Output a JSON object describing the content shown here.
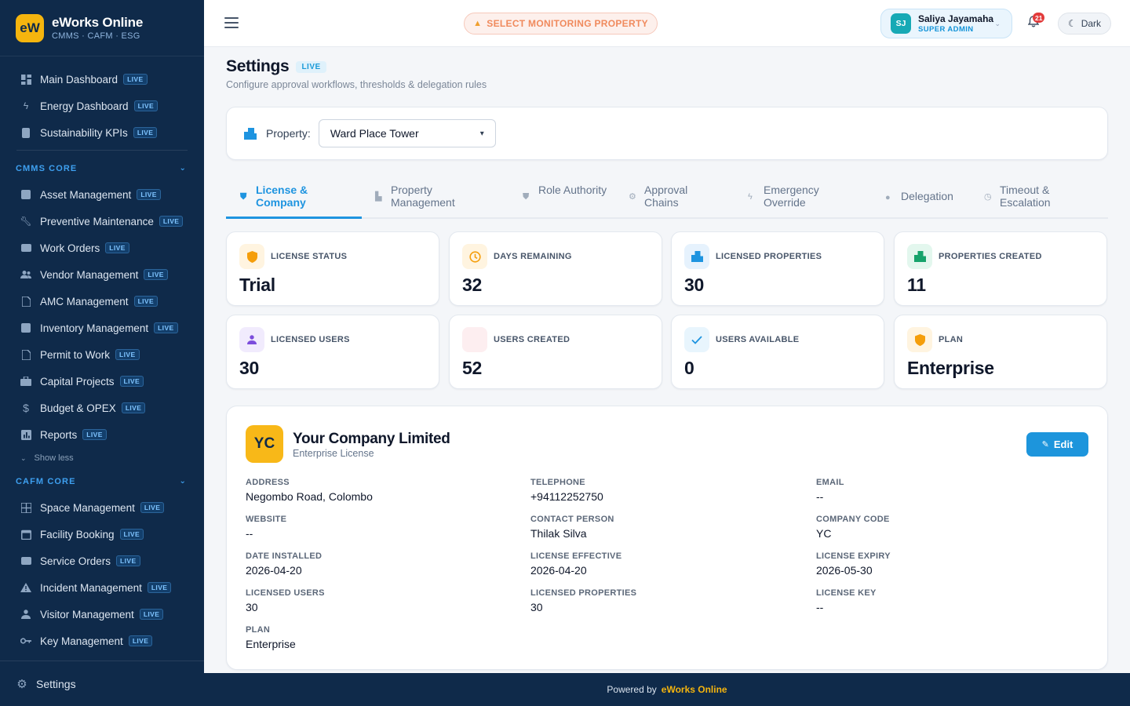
{
  "brand": {
    "logo": "eW",
    "name": "eWorks Online",
    "tagline": "CMMS · CAFM · ESG"
  },
  "sidebar": {
    "top_items": [
      {
        "label": "Main Dashboard",
        "icon": "dashboard-icon",
        "badge": "LIVE"
      },
      {
        "label": "Energy Dashboard",
        "icon": "bolt-icon",
        "badge": "LIVE"
      },
      {
        "label": "Sustainability KPIs",
        "icon": "report-icon",
        "badge": "LIVE"
      }
    ],
    "sections": [
      {
        "title": "CMMS CORE",
        "items": [
          {
            "label": "Asset Management",
            "icon": "asset-icon",
            "badge": "LIVE"
          },
          {
            "label": "Preventive Maintenance",
            "icon": "wrench-icon",
            "badge": "LIVE"
          },
          {
            "label": "Work Orders",
            "icon": "work-order-icon",
            "badge": "LIVE"
          },
          {
            "label": "Vendor Management",
            "icon": "people-icon",
            "badge": "LIVE"
          },
          {
            "label": "AMC Management",
            "icon": "document-icon",
            "badge": "LIVE"
          },
          {
            "label": "Inventory Management",
            "icon": "inventory-icon",
            "badge": "LIVE"
          },
          {
            "label": "Permit to Work",
            "icon": "permit-icon",
            "badge": "LIVE"
          },
          {
            "label": "Capital Projects",
            "icon": "briefcase-icon",
            "badge": "LIVE"
          },
          {
            "label": "Budget & OPEX",
            "icon": "dollar-icon",
            "badge": "LIVE"
          },
          {
            "label": "Reports",
            "icon": "chart-icon",
            "badge": "LIVE"
          }
        ],
        "show_less": "Show less"
      },
      {
        "title": "CAFM CORE",
        "items": [
          {
            "label": "Space Management",
            "icon": "building-icon",
            "badge": "LIVE"
          },
          {
            "label": "Facility Booking",
            "icon": "calendar-icon",
            "badge": "LIVE"
          },
          {
            "label": "Service Orders",
            "icon": "service-icon",
            "badge": "LIVE"
          },
          {
            "label": "Incident Management",
            "icon": "warning-icon",
            "badge": "LIVE"
          },
          {
            "label": "Visitor Management",
            "icon": "person-icon",
            "badge": "LIVE"
          },
          {
            "label": "Key Management",
            "icon": "key-icon",
            "badge": "LIVE"
          }
        ]
      }
    ],
    "footer": {
      "label": "Settings",
      "icon": "gear-icon"
    }
  },
  "topbar": {
    "select_property": "SELECT MONITORING PROPERTY",
    "user": {
      "initials": "SJ",
      "name": "Saliya Jayamaha",
      "role": "SUPER ADMIN"
    },
    "notification_count": "21",
    "theme_toggle": "Dark"
  },
  "page": {
    "title": "Settings",
    "badge": "LIVE",
    "subtitle": "Configure approval workflows, thresholds & delegation rules"
  },
  "property_filter": {
    "label": "Property:",
    "selected": "Ward Place Tower"
  },
  "tabs": [
    {
      "label": "License & Company",
      "icon": "shield-icon",
      "active": true
    },
    {
      "label": "Property Management",
      "icon": "building-icon",
      "active": false
    },
    {
      "label": "Role Authority",
      "icon": "shield-icon",
      "active": false
    },
    {
      "label": "Approval Chains",
      "icon": "gear-icon",
      "active": false
    },
    {
      "label": "Emergency Override",
      "icon": "bolt-icon",
      "active": false
    },
    {
      "label": "Delegation",
      "icon": "person-icon",
      "active": false
    },
    {
      "label": "Timeout & Escalation",
      "icon": "clock-icon",
      "active": false
    }
  ],
  "stats": [
    {
      "label": "LICENSE STATUS",
      "value": "Trial",
      "icon": "shield-icon",
      "icon_bg": "#fff4e0",
      "icon_color": "#f59e0b"
    },
    {
      "label": "DAYS REMAINING",
      "value": "32",
      "icon": "clock-icon",
      "icon_bg": "#fff4e0",
      "icon_color": "#f59e0b"
    },
    {
      "label": "LICENSED PROPERTIES",
      "value": "30",
      "icon": "building-icon",
      "icon_bg": "#e6f2fd",
      "icon_color": "#1e94e0"
    },
    {
      "label": "PROPERTIES CREATED",
      "value": "11",
      "icon": "building-icon",
      "icon_bg": "#e3f7ee",
      "icon_color": "#16a36b"
    },
    {
      "label": "LICENSED USERS",
      "value": "30",
      "icon": "person-icon",
      "icon_bg": "#f1ebfd",
      "icon_color": "#7c4ddc"
    },
    {
      "label": "USERS CREATED",
      "value": "52",
      "icon": "person-add-icon",
      "icon_bg": "#fdeef0",
      "icon_color": "#fdeef0"
    },
    {
      "label": "USERS AVAILABLE",
      "value": "0",
      "icon": "check-icon",
      "icon_bg": "#e8f5fd",
      "icon_color": "#1e94e0"
    },
    {
      "label": "PLAN",
      "value": "Enterprise",
      "icon": "shield-icon",
      "icon_bg": "#fff4e0",
      "icon_color": "#f59e0b"
    }
  ],
  "company": {
    "initials": "YC",
    "name": "Your Company Limited",
    "license": "Enterprise License",
    "edit_label": "Edit",
    "fields": [
      {
        "label": "ADDRESS",
        "value": "Negombo Road, Colombo"
      },
      {
        "label": "TELEPHONE",
        "value": "+94112252750"
      },
      {
        "label": "EMAIL",
        "value": "--"
      },
      {
        "label": "WEBSITE",
        "value": "--"
      },
      {
        "label": "CONTACT PERSON",
        "value": "Thilak Silva"
      },
      {
        "label": "COMPANY CODE",
        "value": "YC"
      },
      {
        "label": "DATE INSTALLED",
        "value": "2026-04-20"
      },
      {
        "label": "LICENSE EFFECTIVE",
        "value": "2026-04-20"
      },
      {
        "label": "LICENSE EXPIRY",
        "value": "2026-05-30"
      },
      {
        "label": "LICENSED USERS",
        "value": "30"
      },
      {
        "label": "LICENSED PROPERTIES",
        "value": "30"
      },
      {
        "label": "LICENSE KEY",
        "value": "--"
      },
      {
        "label": "PLAN",
        "value": "Enterprise"
      }
    ]
  },
  "footer": {
    "prefix": "Powered by",
    "brand": "eWorks Online"
  },
  "colors": {
    "sidebar": "#0f2a4a",
    "accent": "#1e94e0",
    "brand": "#f5b50e"
  }
}
